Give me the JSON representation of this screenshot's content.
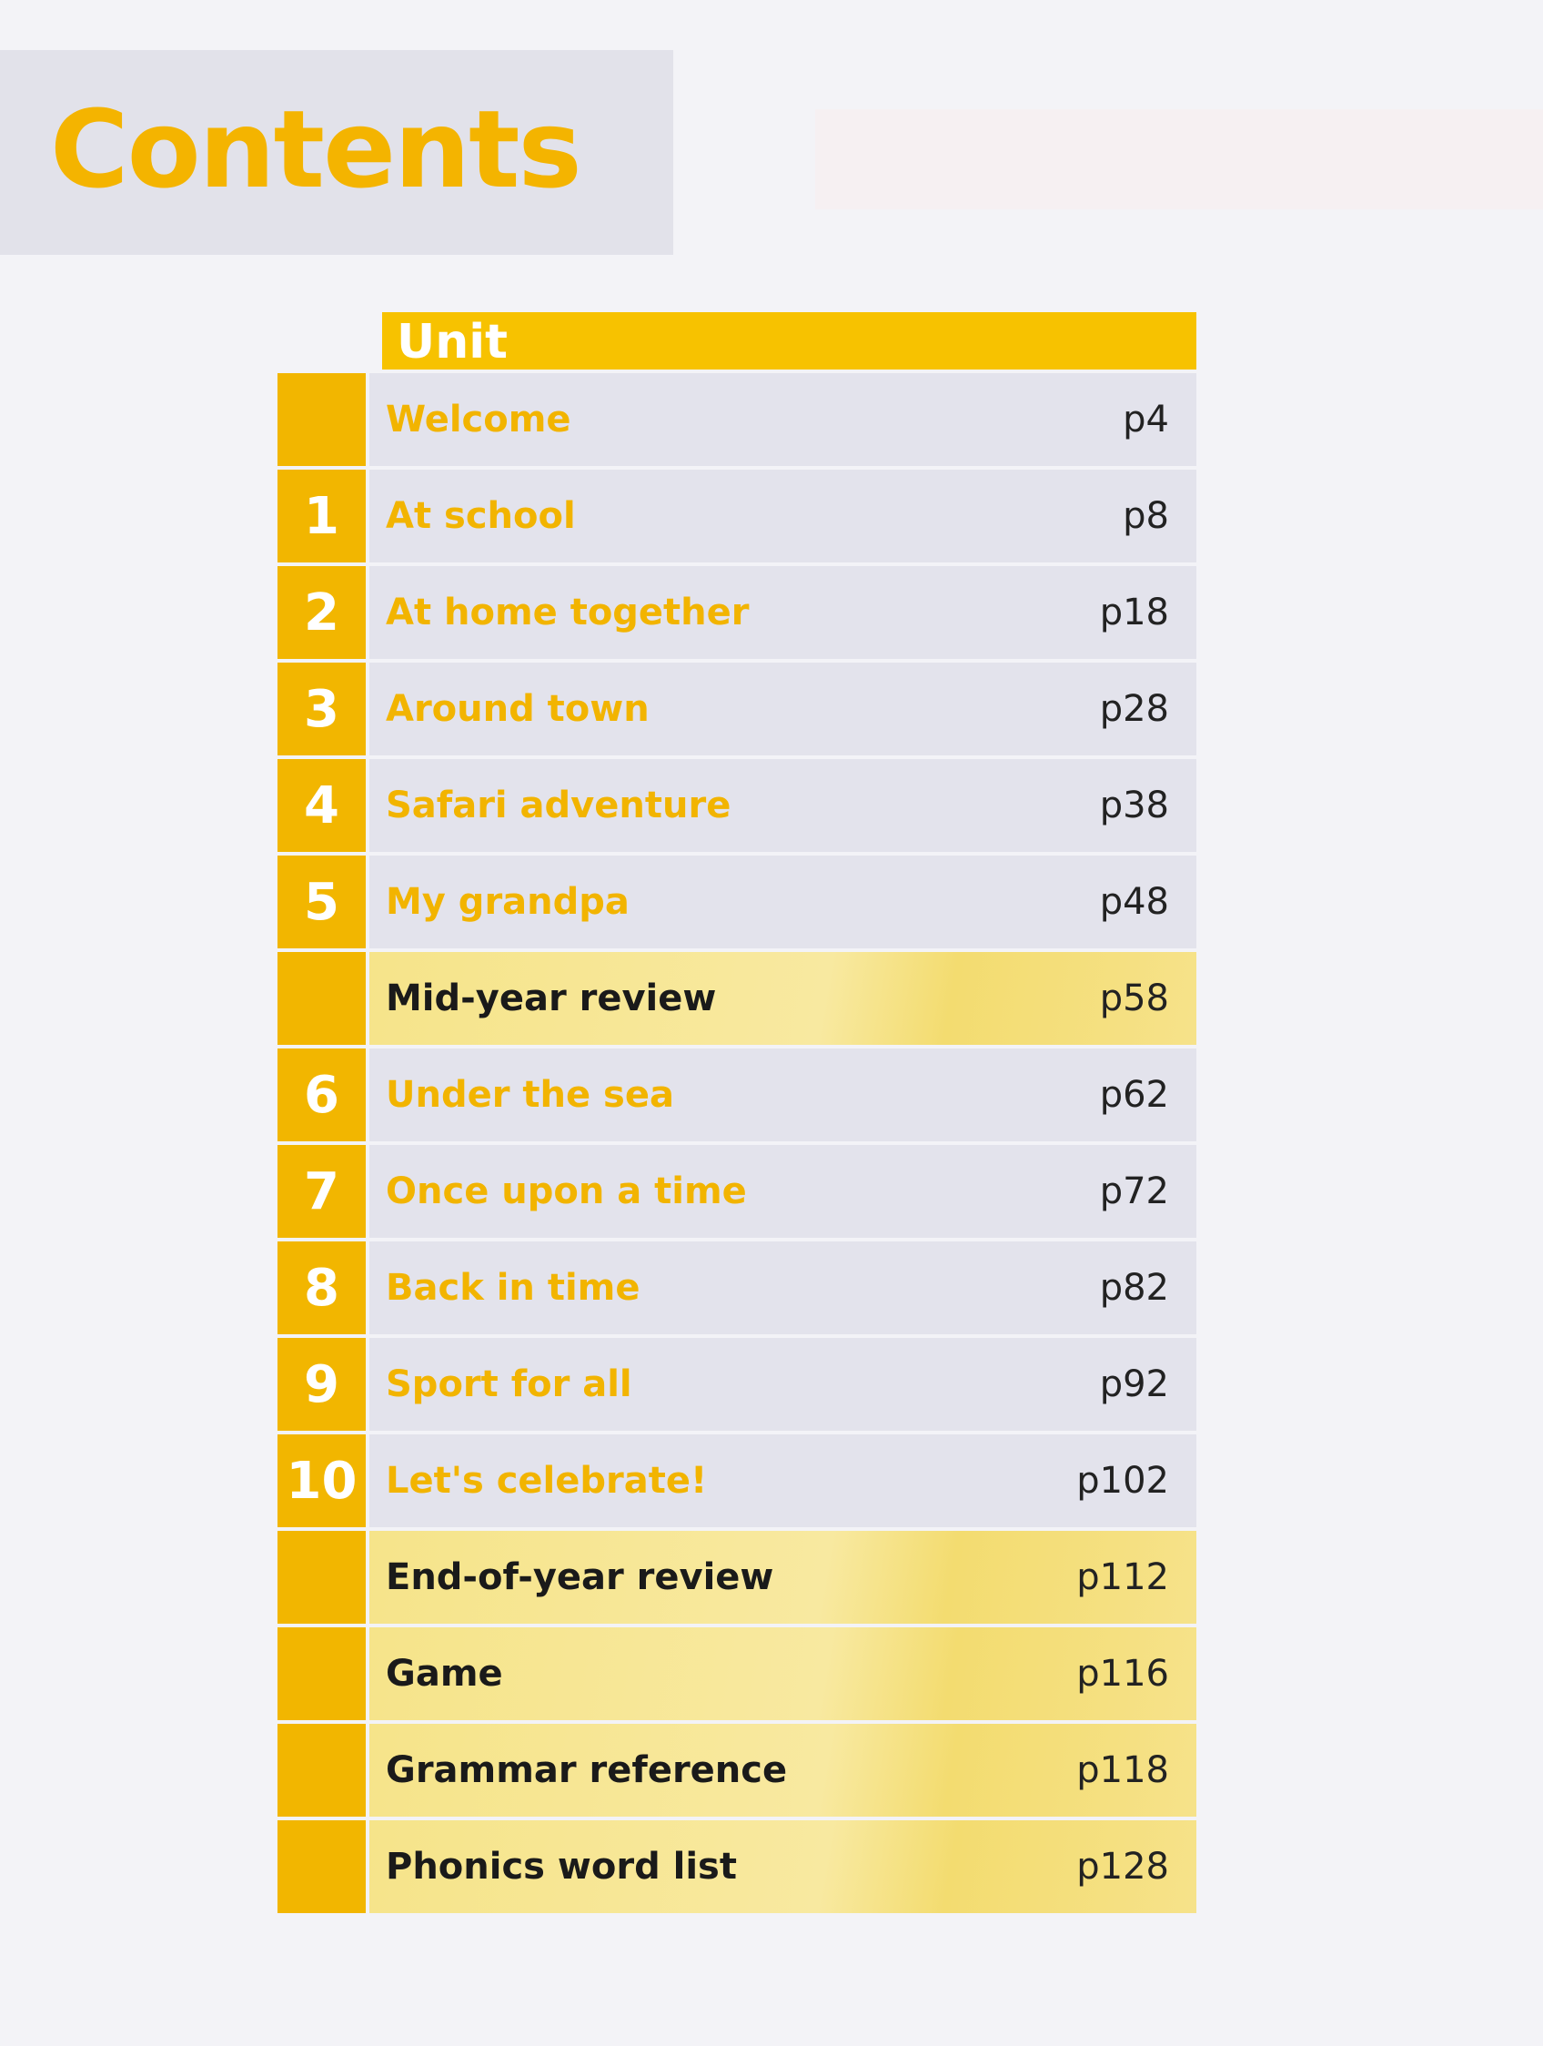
{
  "title": "Contents",
  "table": {
    "header": "Unit",
    "rows": [
      {
        "num": "",
        "label": "Welcome",
        "page": "p4",
        "type": "unit"
      },
      {
        "num": "1",
        "label": "At school",
        "page": "p8",
        "type": "unit"
      },
      {
        "num": "2",
        "label": "At home together",
        "page": "p18",
        "type": "unit"
      },
      {
        "num": "3",
        "label": "Around town",
        "page": "p28",
        "type": "unit"
      },
      {
        "num": "4",
        "label": "Safari adventure",
        "page": "p38",
        "type": "unit"
      },
      {
        "num": "5",
        "label": "My grandpa",
        "page": "p48",
        "type": "unit"
      },
      {
        "num": "",
        "label": "Mid-year review",
        "page": "p58",
        "type": "review"
      },
      {
        "num": "6",
        "label": "Under the sea",
        "page": "p62",
        "type": "unit"
      },
      {
        "num": "7",
        "label": "Once upon a time",
        "page": "p72",
        "type": "unit"
      },
      {
        "num": "8",
        "label": "Back in time",
        "page": "p82",
        "type": "unit"
      },
      {
        "num": "9",
        "label": "Sport for all",
        "page": "p92",
        "type": "unit"
      },
      {
        "num": "10",
        "label": "Let's celebrate!",
        "page": "p102",
        "type": "unit"
      },
      {
        "num": "",
        "label": "End-of-year review",
        "page": "p112",
        "type": "review"
      },
      {
        "num": "",
        "label": "Game",
        "page": "p116",
        "type": "review"
      },
      {
        "num": "",
        "label": "Grammar reference",
        "page": "p118",
        "type": "review"
      },
      {
        "num": "",
        "label": "Phonics word list",
        "page": "p128",
        "type": "review"
      }
    ]
  },
  "colors": {
    "accent": "#f4b400",
    "row_bg": "#e3e3ec",
    "review_bg": "#f6e48a"
  }
}
